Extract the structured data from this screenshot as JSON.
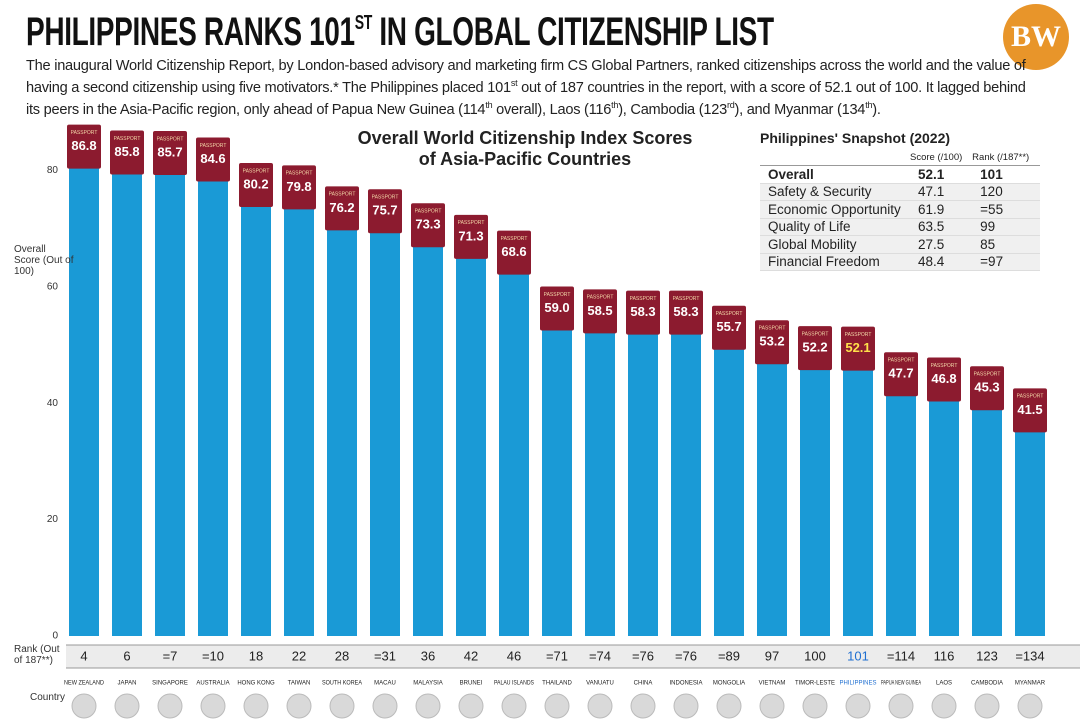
{
  "header": {
    "title": [
      "PHILIPPINES RANKS 101",
      "ST",
      " IN GLOBAL CITIZENSHIP LIST"
    ],
    "logo": "BW",
    "description": [
      {
        "text": "The inaugural World Citizenship Report, by London-based advisory and marketing firm CS Global Partners, ranked citizenships across the world and the value of having a second citizenship using five motivators.* The Philippines placed 101"
      },
      {
        "sup": "st"
      },
      {
        "text": " out of 187 countries in the report, with a score of 52.1 out of 100. It lagged behind its peers in the Asia-Pacific region, only ahead of Papua New Guinea (114"
      },
      {
        "sup": "th"
      },
      {
        "text": " overall), Laos (116"
      },
      {
        "sup": "th"
      },
      {
        "text": "), Cambodia (123"
      },
      {
        "sup": "rd"
      },
      {
        "text": "), and Myanmar (134"
      },
      {
        "sup": "th"
      },
      {
        "text": ")."
      }
    ]
  },
  "snapshot": {
    "title": "Philippines' Snapshot (2022)",
    "columns": [
      "Score (/100)",
      "Rank (/187**)"
    ],
    "rows": [
      [
        "Overall",
        52.1,
        101
      ],
      [
        "Safety & Security",
        47.1,
        120
      ],
      [
        "Economic Opportunity",
        61.9,
        "=55"
      ],
      [
        "Quality of Life",
        63.5,
        99
      ],
      [
        "Global Mobility",
        27.5,
        85
      ],
      [
        "Financial Freedom",
        48.4,
        "=97"
      ]
    ]
  },
  "chart_data": {
    "type": "bar",
    "title": [
      "Overall World Citizenship Index Scores",
      "of Asia-Pacific Countries"
    ],
    "y_label": "Overall Score (Out of 100)",
    "rank_label": "Rank (Out of 187**)",
    "country_label": "Country",
    "passport_label": "PASSPORT",
    "categories": [
      "NEW ZEALAND",
      "JAPAN",
      "SINGAPORE",
      "AUSTRALIA",
      "HONG KONG",
      "TAIWAN",
      "SOUTH KOREA",
      "MACAU",
      "MALAYSIA",
      "BRUNEI",
      "PALAU ISLANDS",
      "THAILAND",
      "VANUATU",
      "CHINA",
      "INDONESIA",
      "MONGOLIA",
      "VIETNAM",
      "TIMOR-LESTE",
      "PHILIPPINES",
      "PAPUA NEW GUINEA",
      "LAOS",
      "CAMBODIA",
      "MYANMAR"
    ],
    "values": [
      86.8,
      85.8,
      85.7,
      84.6,
      80.2,
      79.8,
      76.2,
      75.7,
      73.3,
      71.3,
      68.6,
      59.0,
      58.5,
      58.3,
      58.3,
      55.7,
      53.2,
      52.2,
      52.1,
      47.7,
      46.8,
      45.3,
      41.5
    ],
    "value_labels": [
      "86.8",
      "85.8",
      "85.7",
      "84.6",
      "80.2",
      "79.8",
      "76.2",
      "75.7",
      "73.3",
      "71.3",
      "68.6",
      "59.0",
      "58.5",
      "58.3",
      "58.3",
      "55.7",
      "53.2",
      "52.2",
      "52.1",
      "47.7",
      "46.8",
      "45.3",
      "41.5"
    ],
    "ranks": [
      4,
      6,
      "=7",
      "=10",
      18,
      22,
      28,
      "=31",
      36,
      42,
      46,
      "=71",
      "=74",
      "=76",
      "=76",
      "=89",
      97,
      100,
      101,
      "=114",
      116,
      123,
      "=134"
    ],
    "highlight": "PHILIPPINES",
    "color": "#1a9ad6",
    "passport_color": "#8c1b2f",
    "highlight_color": "#1f6fd1",
    "ylim": [
      0,
      90
    ],
    "yticks": [
      0,
      20,
      40,
      60,
      80
    ],
    "grid": false
  }
}
